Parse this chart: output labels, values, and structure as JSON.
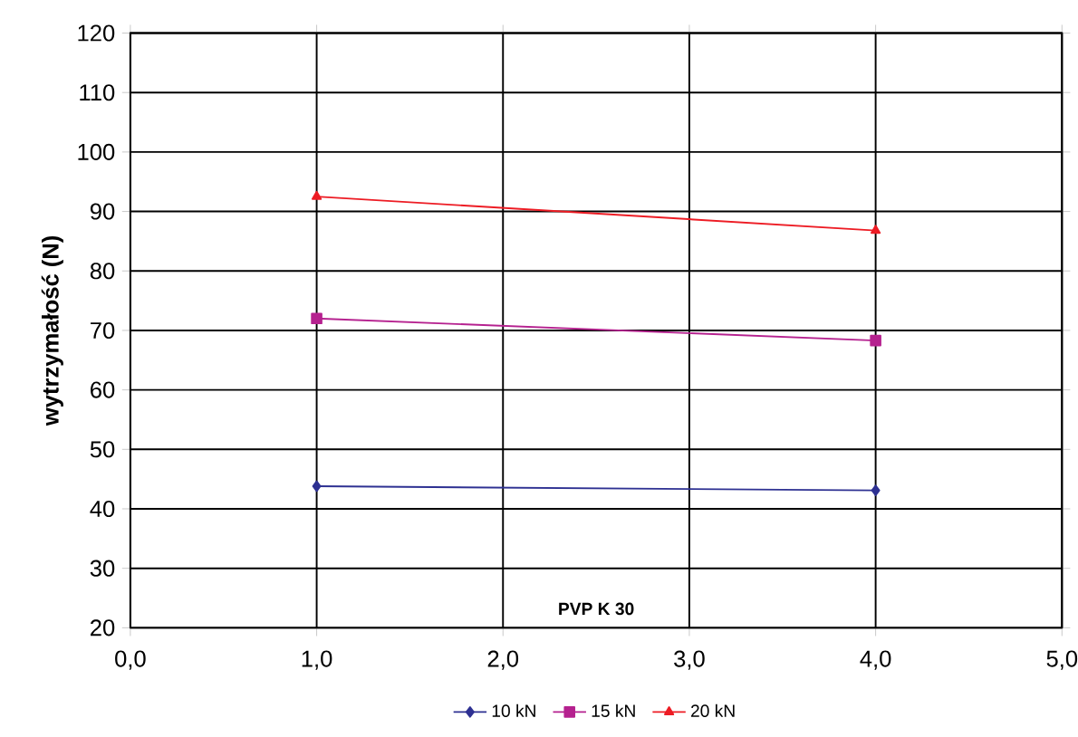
{
  "chart_data": {
    "type": "line",
    "ylabel": "wytrzymałość (N)",
    "annotations": [
      "PVP K 30"
    ],
    "xlim": [
      0,
      5
    ],
    "xticks": [
      {
        "value": 0,
        "label": "0,0"
      },
      {
        "value": 1,
        "label": "1,0"
      },
      {
        "value": 2,
        "label": "2,0"
      },
      {
        "value": 3,
        "label": "3,0"
      },
      {
        "value": 4,
        "label": "4,0"
      },
      {
        "value": 5,
        "label": "5,0"
      }
    ],
    "ylim": [
      20,
      120
    ],
    "yticks": [
      20,
      30,
      40,
      50,
      60,
      70,
      80,
      90,
      100,
      110,
      120
    ],
    "x": [
      1,
      4
    ],
    "grid": true,
    "legend": "bottom",
    "series": [
      {
        "name": "10 kN",
        "color": "#2e3192",
        "marker": "diamond",
        "values": [
          43.8,
          43.1
        ]
      },
      {
        "name": "15 kN",
        "color": "#b5218f",
        "marker": "square",
        "values": [
          72,
          68.3
        ]
      },
      {
        "name": "20 kN",
        "color": "#ed1c24",
        "marker": "triangle",
        "values": [
          92.5,
          86.8
        ]
      }
    ]
  }
}
